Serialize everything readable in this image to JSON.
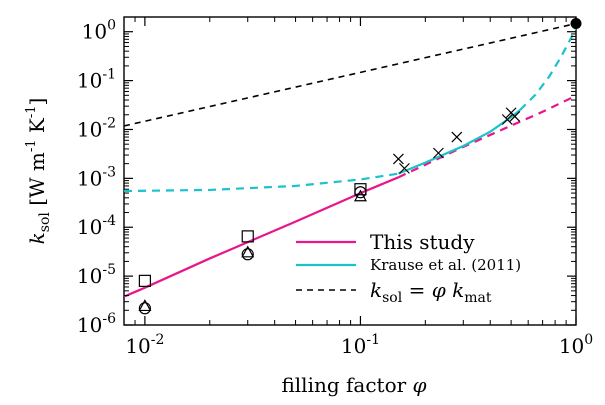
{
  "chart_data": {
    "type": "scatter",
    "xscale": "log",
    "yscale": "log",
    "xlim": [
      0.008,
      1.0
    ],
    "ylim": [
      1e-06,
      2.0
    ],
    "xlabel_main": "filling factor ",
    "xlabel_sym": "φ",
    "ylabel": {
      "k": "k",
      "sub": "sol",
      "bracket_open": " [W m",
      "exp1": "-1",
      "mid": " K",
      "exp2": "-1",
      "bracket_close": "]"
    },
    "xticks": [
      {
        "value": 0.01,
        "base": "10",
        "exp": "-2"
      },
      {
        "value": 0.1,
        "base": "10",
        "exp": "-1"
      },
      {
        "value": 1.0,
        "base": "10",
        "exp": "0"
      }
    ],
    "yticks": [
      {
        "value": 1e-06,
        "base": "10",
        "exp": "-6"
      },
      {
        "value": 1e-05,
        "base": "10",
        "exp": "-5"
      },
      {
        "value": 0.0001,
        "base": "10",
        "exp": "-4"
      },
      {
        "value": 0.001,
        "base": "10",
        "exp": "-3"
      },
      {
        "value": 0.01,
        "base": "10",
        "exp": "-2"
      },
      {
        "value": 0.1,
        "base": "10",
        "exp": "-1"
      },
      {
        "value": 1.0,
        "base": "10",
        "exp": "0"
      }
    ],
    "series": [
      {
        "name": "This study",
        "kind": "line",
        "color": "#e8168c",
        "style": "solid",
        "x": [
          0.008,
          0.01,
          0.02,
          0.05,
          0.1,
          0.15
        ],
        "y": [
          3.8e-06,
          5.8e-06,
          2.3e-05,
          0.00013,
          0.0005,
          0.00105
        ]
      },
      {
        "name": "",
        "kind": "line",
        "color": "#e8168c",
        "style": "dashed",
        "x": [
          0.15,
          0.2,
          0.3,
          0.5,
          0.7,
          1.0
        ],
        "y": [
          0.00105,
          0.0019,
          0.0044,
          0.012,
          0.023,
          0.049
        ]
      },
      {
        "name": "Krause et al. (2011)",
        "kind": "line",
        "color": "#19c2cc",
        "style": "solid",
        "x": [
          0.15,
          0.2,
          0.3,
          0.4,
          0.5,
          0.55
        ],
        "y": [
          0.00125,
          0.0021,
          0.0046,
          0.009,
          0.018,
          0.025
        ]
      },
      {
        "name": "",
        "kind": "line",
        "color": "#19c2cc",
        "style": "dashed",
        "x": [
          0.008,
          0.02,
          0.05,
          0.1,
          0.15
        ],
        "y": [
          0.00055,
          0.00058,
          0.0007,
          0.00095,
          0.00125
        ]
      },
      {
        "name": "",
        "kind": "line",
        "color": "#19c2cc",
        "style": "dashed",
        "x": [
          0.55,
          0.65,
          0.75,
          0.85,
          0.95,
          1.0
        ],
        "y": [
          0.025,
          0.052,
          0.12,
          0.3,
          0.75,
          1.2
        ]
      },
      {
        "name": "",
        "kind": "line",
        "color": "#000000",
        "style": "dashed",
        "x": [
          0.008,
          1.0
        ],
        "y": [
          0.0118,
          1.47
        ]
      }
    ],
    "legend": {
      "placement": "bottom-right",
      "entries": [
        {
          "label": "This study",
          "color": "#e8168c",
          "style": "solid"
        },
        {
          "label": "Krause et al. (2011)",
          "color": "#19c2cc",
          "style": "solid"
        },
        {
          "label_k": "k",
          "label_sub": "sol",
          "label_eq": " = ",
          "label_phi": "φ",
          "label_k2": " k",
          "label_sub2": "mat",
          "color": "#000000",
          "style": "dashed"
        }
      ]
    },
    "markers": {
      "squares": [
        {
          "x": 0.01,
          "y": 8e-06
        },
        {
          "x": 0.03,
          "y": 6.5e-05
        },
        {
          "x": 0.1,
          "y": 0.0006
        }
      ],
      "circles": [
        {
          "x": 0.01,
          "y": 2.2e-06
        },
        {
          "x": 0.03,
          "y": 2.8e-05
        },
        {
          "x": 0.1,
          "y": 0.00052
        }
      ],
      "triangles": [
        {
          "x": 0.01,
          "y": 2.4e-06
        },
        {
          "x": 0.03,
          "y": 3e-05
        },
        {
          "x": 0.1,
          "y": 0.00042
        }
      ],
      "crosses": [
        {
          "x": 0.15,
          "y": 0.0025
        },
        {
          "x": 0.16,
          "y": 0.0016
        },
        {
          "x": 0.23,
          "y": 0.0033
        },
        {
          "x": 0.28,
          "y": 0.007
        },
        {
          "x": 0.48,
          "y": 0.016
        },
        {
          "x": 0.5,
          "y": 0.022
        },
        {
          "x": 0.52,
          "y": 0.0185
        }
      ],
      "filled_circles": [
        {
          "x": 1.0,
          "y": 1.47
        }
      ]
    }
  }
}
